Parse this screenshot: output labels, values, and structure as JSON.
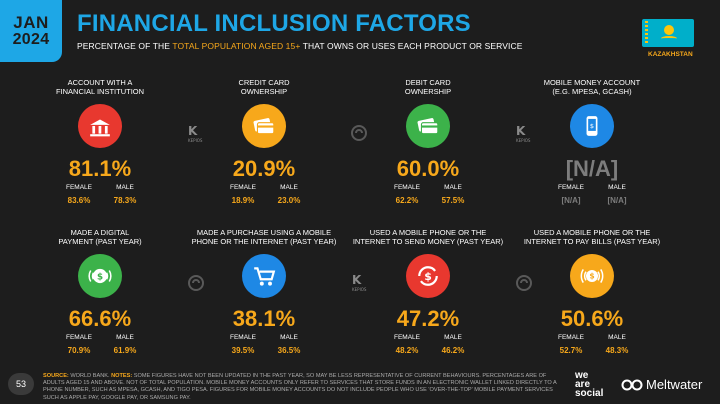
{
  "header": {
    "month": "JAN",
    "year": "2024",
    "title": "FINANCIAL INCLUSION FACTORS",
    "subtitle_pre": "PERCENTAGE OF THE ",
    "subtitle_highlight": "TOTAL POPULATION AGED 15+",
    "subtitle_post": " THAT OWNS OR USES EACH PRODUCT OR SERVICE",
    "country": "KAZAKHSTAN"
  },
  "gender_labels": {
    "female": "FEMALE",
    "male": "MALE"
  },
  "cards": [
    {
      "label_1": "ACCOUNT WITH A",
      "label_2": "FINANCIAL INSTITUTION",
      "value": "81.1%",
      "female": "83.6%",
      "male": "78.3%",
      "color": "#e8382f",
      "icon": "bank-icon"
    },
    {
      "label_1": "CREDIT CARD",
      "label_2": "OWNERSHIP",
      "value": "20.9%",
      "female": "18.9%",
      "male": "23.0%",
      "color": "#f7a81b",
      "icon": "credit-card-icon"
    },
    {
      "label_1": "DEBIT CARD",
      "label_2": "OWNERSHIP",
      "value": "60.0%",
      "female": "62.2%",
      "male": "57.5%",
      "color": "#3cb24a",
      "icon": "debit-card-icon"
    },
    {
      "label_1": "MOBILE MONEY ACCOUNT",
      "label_2": "(E.G. MPESA, GCASH)",
      "value": "[N/A]",
      "female": "[N/A]",
      "male": "[N/A]",
      "color": "#1e88e5",
      "icon": "mobile-money-icon"
    },
    {
      "label_1": "MADE A DIGITAL",
      "label_2": "PAYMENT (PAST YEAR)",
      "value": "66.6%",
      "female": "70.9%",
      "male": "61.9%",
      "color": "#3cb24a",
      "icon": "digital-payment-icon"
    },
    {
      "label_1": "MADE A PURCHASE USING A MOBILE",
      "label_2": "PHONE OR THE INTERNET (PAST YEAR)",
      "value": "38.1%",
      "female": "39.5%",
      "male": "36.5%",
      "color": "#1e88e5",
      "icon": "shopping-cart-icon"
    },
    {
      "label_1": "USED A MOBILE PHONE OR THE",
      "label_2": "INTERNET TO SEND MONEY (PAST YEAR)",
      "value": "47.2%",
      "female": "48.2%",
      "male": "46.2%",
      "color": "#e8382f",
      "icon": "send-money-icon"
    },
    {
      "label_1": "USED A MOBILE PHONE OR THE",
      "label_2": "INTERNET TO PAY BILLS (PAST YEAR)",
      "value": "50.6%",
      "female": "52.7%",
      "male": "48.3%",
      "color": "#f7a81b",
      "icon": "pay-bills-icon"
    }
  ],
  "watermark_text": "KEPIOS",
  "footer": {
    "page": "53",
    "source_label": "SOURCE:",
    "source": " WORLD BANK. ",
    "notes_label": "NOTES:",
    "notes": " SOME FIGURES HAVE NOT BEEN UPDATED IN THE PAST YEAR, SO MAY BE LESS REPRESENTATIVE OF CURRENT BEHAVIOURS. PERCENTAGES ARE OF ADULTS AGED 15 AND ABOVE. NOT OF TOTAL POPULATION. MOBILE MONEY ACCOUNTS ONLY REFER TO SERVICES THAT STORE FUNDS IN AN ELECTRONIC WALLET LINKED DIRECTLY TO A PHONE NUMBER, SUCH AS MPESA, GCASH, AND TIGO PESA. FIGURES FOR MOBILE MONEY ACCOUNTS DO NOT INCLUDE PEOPLE WHO USE 'OVER-THE-TOP' MOBILE PAYMENT SERVICES SUCH AS APPLE PAY, GOOGLE PAY, OR SAMSUNG PAY.",
    "brand_1_line_1": "we",
    "brand_1_line_2": "are",
    "brand_1_line_3": "social",
    "brand_2": "Meltwater"
  }
}
